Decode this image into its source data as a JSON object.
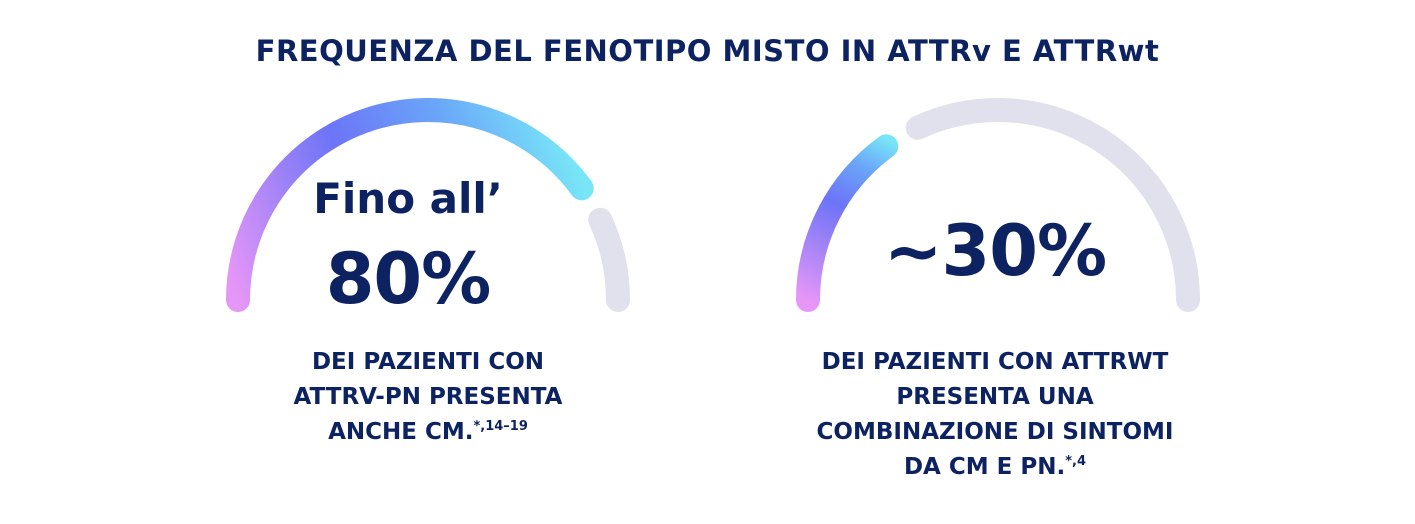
{
  "header": {
    "title": "FREQUENZA DEL FENOTIPO MISTO IN ATTRv E ATTRwt"
  },
  "chart_data": [
    {
      "type": "gauge",
      "value_percent": 80,
      "max_percent": 100,
      "prefix_text": "Fino all’",
      "value_label": "80%",
      "description_lines": [
        "DEI PAZIENTI CON",
        "ATTRV-PN PRESENTA",
        "ANCHE CM."
      ],
      "reference": "*,14–19",
      "colors": {
        "track": "#e1e0ed",
        "gradient": [
          "#e596f7",
          "#6c74f7",
          "#6aa6f8",
          "#78e6f7"
        ]
      }
    },
    {
      "type": "gauge",
      "value_percent": 30,
      "max_percent": 100,
      "prefix_text": "",
      "value_label": "~30%",
      "description_lines": [
        "DEI PAZIENTI CON ATTRWT",
        "PRESENTA UNA",
        "COMBINAZIONE DI SINTOMI",
        "DA CM E PN."
      ],
      "reference": "*,4",
      "colors": {
        "track": "#e1e0ed",
        "gradient": [
          "#e596f7",
          "#6c74f7",
          "#6aa6f8",
          "#78e6f7"
        ]
      }
    }
  ]
}
